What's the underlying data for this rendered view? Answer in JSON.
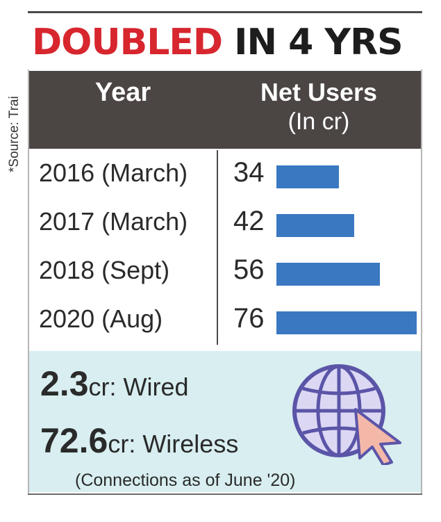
{
  "title": {
    "part1": "DOUBLED",
    "part2": "IN 4 YRS"
  },
  "source": "*Source: Trai",
  "chart_data": {
    "type": "bar",
    "orientation": "horizontal",
    "title": "DOUBLED IN 4 YRS",
    "column_headers": {
      "category": "Year",
      "value": "Net Users",
      "unit": "(In cr)"
    },
    "categories": [
      "2016 (March)",
      "2017 (March)",
      "2018 (Sept)",
      "2020 (Aug)"
    ],
    "values": [
      34,
      42,
      56,
      76
    ],
    "value_labels": [
      "34",
      "42",
      "56",
      "76"
    ],
    "xlim": [
      0,
      76
    ]
  },
  "stats": [
    {
      "value": "2.3",
      "label": "cr: Wired"
    },
    {
      "value": "72.6",
      "label": "cr: Wireless"
    }
  ],
  "note": "(Connections as of June '20)",
  "icons": {
    "globe": "globe-icon",
    "cursor": "cursor-arrow-icon"
  },
  "colors": {
    "title_red": "#d7262e",
    "bar": "#3a78c2",
    "header_bg": "#4b4544",
    "panel_bg": "#d8eef0",
    "globe": "#5b55a8",
    "cursor": "#f3b8a8"
  }
}
